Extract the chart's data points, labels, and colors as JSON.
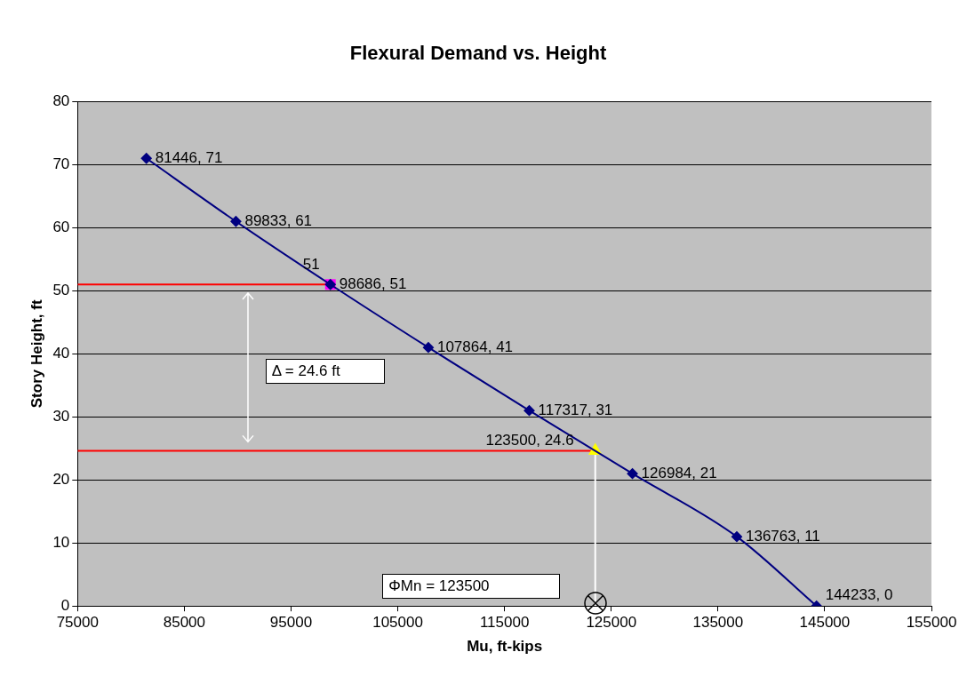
{
  "chart_data": {
    "type": "line",
    "title": "Flexural Demand vs. Height",
    "xlabel": "Mu, ft-kips",
    "ylabel": "Story Height, ft",
    "xlim": [
      75000,
      155000
    ],
    "xticks": [
      75000,
      85000,
      95000,
      105000,
      115000,
      125000,
      135000,
      145000,
      155000
    ],
    "ylim": [
      0,
      80
    ],
    "yticks": [
      0,
      10,
      20,
      30,
      40,
      50,
      60,
      70,
      80
    ],
    "grid": "y",
    "legend": false,
    "series": [
      {
        "type": "line",
        "color": "#000080",
        "marker": "diamond",
        "x": [
          81446,
          89833,
          98686,
          107864,
          117317,
          126984,
          136763,
          144233
        ],
        "values": [
          71,
          61,
          51,
          41,
          31,
          21,
          11,
          0
        ],
        "value_labels": [
          "81446, 71",
          "89833, 61",
          "98686, 51",
          "107864, 41",
          "117317, 31",
          "126984, 21",
          "136763, 11",
          "144233, 0"
        ]
      },
      {
        "type": "scatter",
        "color": "#ff00ff",
        "marker": "square",
        "x": [
          98686
        ],
        "values": [
          51
        ],
        "value_labels": [
          "51"
        ]
      },
      {
        "type": "scatter",
        "color": "#ffff00",
        "marker": "triangle",
        "x": [
          123500
        ],
        "values": [
          24.6
        ],
        "value_labels": [
          "123500, 24.6"
        ]
      },
      {
        "type": "line",
        "color": "#ff0000",
        "marker": "none",
        "x": [
          75000,
          98686
        ],
        "values": [
          51,
          51
        ]
      },
      {
        "type": "line",
        "color": "#ff0000",
        "marker": "none",
        "x": [
          75000,
          123500
        ],
        "values": [
          24.6,
          24.6
        ]
      },
      {
        "type": "line",
        "color": "#ffffff",
        "marker": "none",
        "x": [
          123500,
          123500
        ],
        "values": [
          0,
          24.6
        ]
      }
    ],
    "annotations": [
      "Δ = 24.6 ft",
      "ΦMn = 123500"
    ]
  }
}
